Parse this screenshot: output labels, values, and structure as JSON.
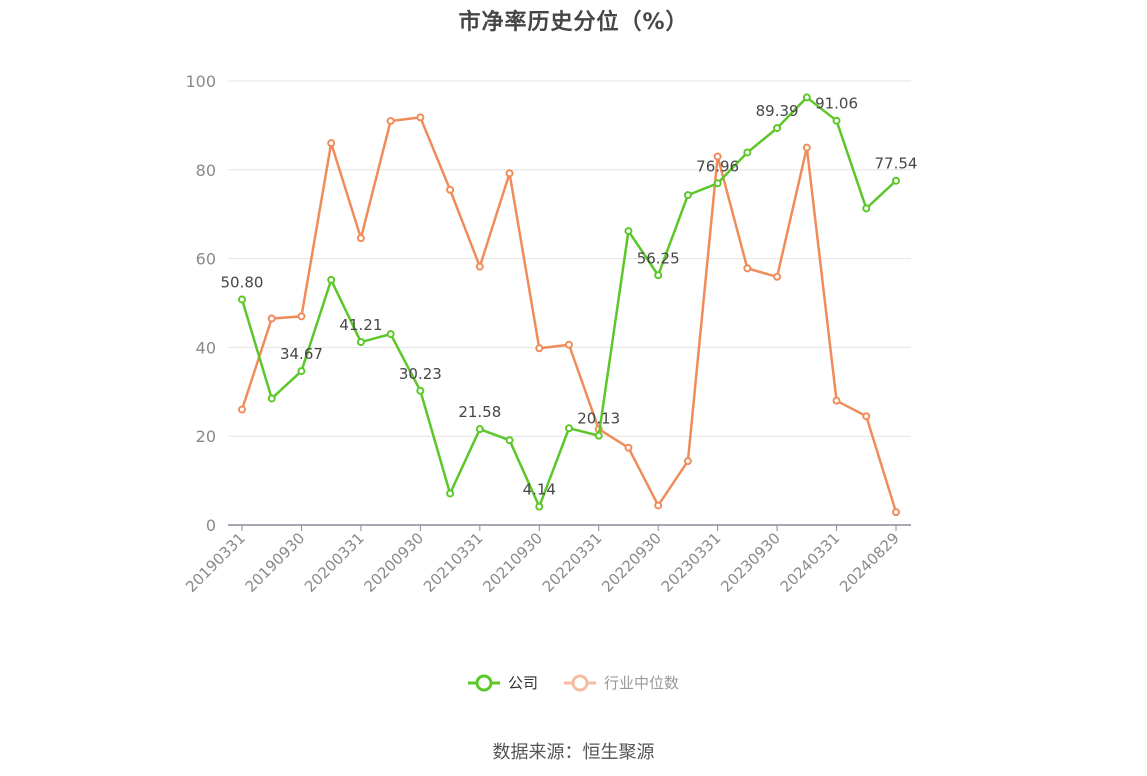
{
  "chart_data": {
    "type": "line",
    "title": "市净率历史分位（%）",
    "ylim": [
      0,
      100
    ],
    "y_ticks": [
      0,
      20,
      40,
      60,
      80,
      100
    ],
    "grid": true,
    "legend_position": "bottom-center",
    "x": [
      "20190331",
      "20190630",
      "20190930",
      "20191231",
      "20200331",
      "20200630",
      "20200930",
      "20201231",
      "20210331",
      "20210630",
      "20210930",
      "20211231",
      "20220331",
      "20220630",
      "20220930",
      "20221231",
      "20230331",
      "20230630",
      "20230930",
      "20231231",
      "20240331",
      "20240630",
      "20240829"
    ],
    "x_tick_labels": [
      "20190331",
      "20190930",
      "20200331",
      "20200930",
      "20210331",
      "20210930",
      "20220331",
      "20220930",
      "20230331",
      "20230930",
      "20240331",
      "20240829"
    ],
    "series": [
      {
        "name": "公司",
        "color": "#5cc72a",
        "values": [
          50.8,
          28.5,
          34.67,
          55.2,
          41.21,
          43.0,
          30.23,
          7.1,
          21.58,
          19.1,
          4.14,
          21.8,
          20.13,
          66.2,
          56.25,
          74.3,
          76.96,
          83.9,
          89.39,
          96.3,
          91.06,
          71.3,
          77.54
        ],
        "labels": {
          "0": "50.80",
          "2": "34.67",
          "4": "41.21",
          "6": "30.23",
          "8": "21.58",
          "10": "4.14",
          "12": "20.13",
          "14": "56.25",
          "16": "76.96",
          "18": "89.39",
          "20": "91.06",
          "22": "77.54"
        }
      },
      {
        "name": "行业中位数",
        "color": "#f08c5a",
        "values": [
          26.0,
          46.5,
          47.0,
          86.0,
          64.6,
          91.0,
          91.8,
          75.5,
          58.2,
          79.2,
          39.8,
          40.6,
          21.6,
          17.4,
          4.4,
          14.4,
          83.0,
          57.8,
          55.9,
          85.0,
          28.0,
          24.5,
          2.9
        ]
      }
    ]
  },
  "legend": {
    "company_label": "公司",
    "industry_label": "行业中位数",
    "company_color": "#5cc72a",
    "industry_color": "#f5bca3"
  },
  "source_note": "数据来源：恒生聚源"
}
